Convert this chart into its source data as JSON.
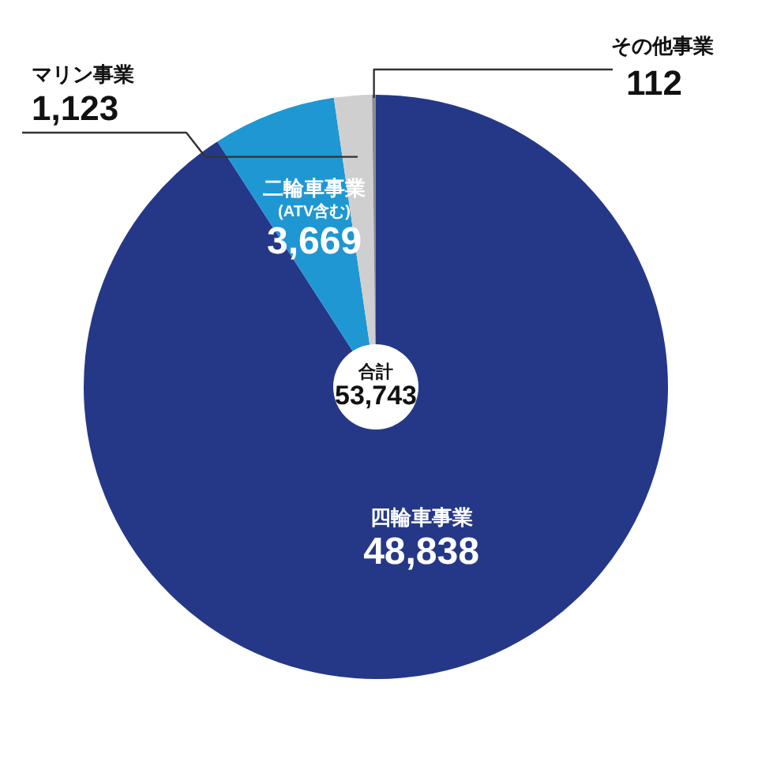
{
  "chart_data": {
    "type": "pie",
    "categories": [
      "四輪車事業",
      "二輪車事業 (ATV含む)",
      "マリン事業",
      "その他事業"
    ],
    "values": [
      48838,
      3669,
      1123,
      112
    ],
    "value_labels": [
      "48,838",
      "3,669",
      "1,123",
      "112"
    ],
    "colors": [
      "#253888",
      "#1f97d3",
      "#cfcfcf",
      "#8c8c8c"
    ],
    "annotations": [
      "合計",
      "53,743"
    ],
    "legend": false
  }
}
